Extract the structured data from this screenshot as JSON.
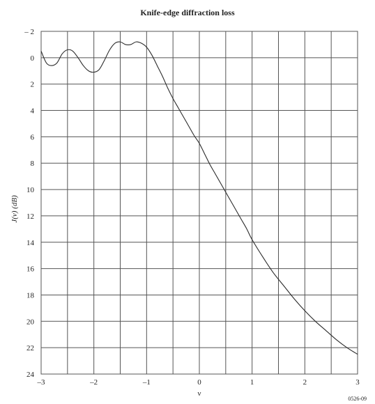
{
  "chart_data": {
    "type": "line",
    "title": "Knife-edge diffraction loss",
    "xlabel": "ν",
    "ylabel": "J(ν) (dB)",
    "xlim": [
      -3,
      3
    ],
    "ylim": [
      -2,
      24
    ],
    "y_inverted": true,
    "grid": true,
    "x_ticks": [
      -3,
      -2.5,
      -2,
      -1.5,
      -1,
      -0.5,
      0,
      0.5,
      1,
      1.5,
      2,
      2.5,
      3
    ],
    "x_tick_labels": [
      "–3",
      "",
      "–2",
      "",
      "–1",
      "",
      "0",
      "",
      "1",
      "",
      "2",
      "",
      "3"
    ],
    "y_ticks": [
      -2,
      0,
      2,
      4,
      6,
      8,
      10,
      12,
      14,
      16,
      18,
      20,
      22,
      24
    ],
    "y_tick_labels": [
      "– 2",
      "0",
      "2",
      "4",
      "6",
      "8",
      "10",
      "12",
      "14",
      "16",
      "18",
      "20",
      "22",
      "24"
    ],
    "series": [
      {
        "color": "#2b2b2b",
        "x": [
          -3.0,
          -2.9,
          -2.8,
          -2.7,
          -2.6,
          -2.5,
          -2.4,
          -2.3,
          -2.2,
          -2.1,
          -2.0,
          -1.9,
          -1.8,
          -1.7,
          -1.6,
          -1.5,
          -1.4,
          -1.3,
          -1.2,
          -1.1,
          -1.0,
          -0.9,
          -0.8,
          -0.7,
          -0.6,
          -0.5,
          -0.4,
          -0.3,
          -0.2,
          -0.1,
          0.0,
          0.1,
          0.2,
          0.3,
          0.4,
          0.5,
          0.6,
          0.7,
          0.8,
          0.9,
          1.0,
          1.2,
          1.4,
          1.6,
          1.8,
          2.0,
          2.2,
          2.4,
          2.6,
          2.8,
          3.0
        ],
        "y": [
          -0.5,
          0.4,
          0.6,
          0.4,
          -0.3,
          -0.6,
          -0.5,
          0.0,
          0.6,
          1.0,
          1.1,
          0.9,
          0.2,
          -0.6,
          -1.1,
          -1.2,
          -1.0,
          -1.0,
          -1.2,
          -1.1,
          -0.8,
          -0.2,
          0.6,
          1.4,
          2.3,
          3.1,
          3.8,
          4.5,
          5.2,
          5.9,
          6.5,
          7.3,
          8.1,
          8.8,
          9.5,
          10.2,
          10.9,
          11.6,
          12.3,
          13.0,
          13.8,
          15.1,
          16.3,
          17.3,
          18.3,
          19.2,
          20.0,
          20.7,
          21.4,
          22.0,
          22.5
        ]
      }
    ]
  },
  "figure_ref": "0526-09"
}
